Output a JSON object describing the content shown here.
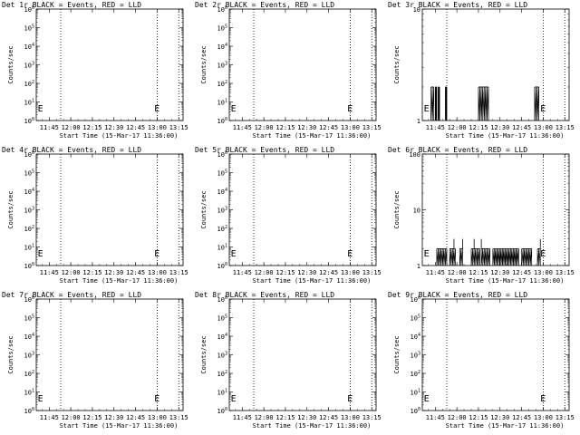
{
  "figure": {
    "background": "#ffffff",
    "foreground": "#000000"
  },
  "chart_data": [
    {
      "type": "line",
      "title": "Det 1r BLACK = Events, RED = LLD",
      "xlabel": "Start Time (15-Mar-17 11:36:00)",
      "ylabel": "Counts/sec",
      "yscale": "log",
      "ylim": [
        1,
        1000000.0
      ],
      "yticks": [
        "10^0",
        "10^1",
        "10^2",
        "10^3",
        "10^4",
        "10^5",
        "10^6"
      ],
      "xlim": [
        "11:36",
        "13:18"
      ],
      "xticks": [
        "11:45",
        "12:00",
        "12:15",
        "12:30",
        "12:45",
        "13:00",
        "13:15"
      ],
      "vlines": [
        "11:53",
        "13:00",
        "13:15"
      ],
      "markers": [
        {
          "x": "11:37",
          "label": "E"
        },
        {
          "x": "12:58",
          "label": "E"
        }
      ],
      "series": []
    },
    {
      "type": "line",
      "title": "Det 2r BLACK = Events, RED = LLD",
      "xlabel": "Start Time (15-Mar-17 11:36:00)",
      "ylabel": "Counts/sec",
      "yscale": "log",
      "ylim": [
        1,
        1000000.0
      ],
      "yticks": [
        "10^0",
        "10^1",
        "10^2",
        "10^3",
        "10^4",
        "10^5",
        "10^6"
      ],
      "xlim": [
        "11:36",
        "13:18"
      ],
      "xticks": [
        "11:45",
        "12:00",
        "12:15",
        "12:30",
        "12:45",
        "13:00",
        "13:15"
      ],
      "vlines": [
        "11:53",
        "13:00",
        "13:15"
      ],
      "markers": [
        {
          "x": "11:37",
          "label": "E"
        },
        {
          "x": "12:58",
          "label": "E"
        }
      ],
      "series": []
    },
    {
      "type": "line",
      "title": "Det 3r BLACK = Events, RED = LLD",
      "xlabel": "Start Time (15-Mar-17 11:36:00)",
      "ylabel": "Counts/sec",
      "yscale": "log",
      "ylim": [
        1,
        10
      ],
      "yticks": [
        "1",
        "10"
      ],
      "xlim": [
        "11:36",
        "13:18"
      ],
      "xticks": [
        "11:45",
        "12:00",
        "12:15",
        "12:30",
        "12:45",
        "13:00",
        "13:15"
      ],
      "vlines": [
        "11:53",
        "13:00",
        "13:15"
      ],
      "markers": [
        {
          "x": "11:37",
          "label": "E"
        },
        {
          "x": "12:58",
          "label": "E"
        }
      ],
      "series": [
        {
          "kind": "bursts",
          "high": 2,
          "low": 1,
          "intervals": [
            [
              "11:42",
              "11:44"
            ],
            [
              "11:45",
              "11:46"
            ],
            [
              "11:47",
              "11:48"
            ],
            [
              "11:52",
              "11:53"
            ],
            [
              "12:15",
              "12:22"
            ],
            [
              "12:54",
              "12:57"
            ]
          ]
        }
      ]
    },
    {
      "type": "line",
      "title": "Det 4r BLACK = Events, RED = LLD",
      "xlabel": "Start Time (15-Mar-17 11:36:00)",
      "ylabel": "Counts/sec",
      "yscale": "log",
      "ylim": [
        1,
        1000000.0
      ],
      "yticks": [
        "10^0",
        "10^1",
        "10^2",
        "10^3",
        "10^4",
        "10^5",
        "10^6"
      ],
      "xlim": [
        "11:36",
        "13:18"
      ],
      "xticks": [
        "11:45",
        "12:00",
        "12:15",
        "12:30",
        "12:45",
        "13:00",
        "13:15"
      ],
      "vlines": [
        "11:53",
        "13:00",
        "13:15"
      ],
      "markers": [
        {
          "x": "11:37",
          "label": "E"
        },
        {
          "x": "12:58",
          "label": "E"
        }
      ],
      "series": []
    },
    {
      "type": "line",
      "title": "Det 5r BLACK = Events, RED = LLD",
      "xlabel": "Start Time (15-Mar-17 11:36:00)",
      "ylabel": "Counts/sec",
      "yscale": "log",
      "ylim": [
        1,
        1000000.0
      ],
      "yticks": [
        "10^0",
        "10^1",
        "10^2",
        "10^3",
        "10^4",
        "10^5",
        "10^6"
      ],
      "xlim": [
        "11:36",
        "13:18"
      ],
      "xticks": [
        "11:45",
        "12:00",
        "12:15",
        "12:30",
        "12:45",
        "13:00",
        "13:15"
      ],
      "vlines": [
        "11:53",
        "13:00",
        "13:15"
      ],
      "markers": [
        {
          "x": "11:37",
          "label": "E"
        },
        {
          "x": "12:58",
          "label": "E"
        }
      ],
      "series": []
    },
    {
      "type": "line",
      "title": "Det 6r BLACK = Events, RED = LLD",
      "xlabel": "Start Time (15-Mar-17 11:36:00)",
      "ylabel": "Counts/sec",
      "yscale": "log",
      "ylim": [
        1,
        100
      ],
      "yticks": [
        "1",
        "10",
        "100"
      ],
      "xlim": [
        "11:36",
        "13:18"
      ],
      "xticks": [
        "11:45",
        "12:00",
        "12:15",
        "12:30",
        "12:45",
        "13:00",
        "13:15"
      ],
      "vlines": [
        "11:53",
        "13:00",
        "13:15"
      ],
      "markers": [
        {
          "x": "11:37",
          "label": "E"
        },
        {
          "x": "12:58",
          "label": "E"
        }
      ],
      "series": [
        {
          "kind": "bursts",
          "high": 2,
          "low": 1,
          "intervals": [
            [
              "11:46",
              "11:53"
            ],
            [
              "11:55",
              "11:59"
            ],
            [
              "12:02",
              "12:04"
            ],
            [
              "12:10",
              "12:16"
            ],
            [
              "12:17",
              "12:23"
            ],
            [
              "12:25",
              "12:43"
            ],
            [
              "12:45",
              "12:52"
            ],
            [
              "12:56",
              "12:58"
            ]
          ]
        },
        {
          "kind": "spikes",
          "points": [
            [
              "11:58",
              3
            ],
            [
              "12:04",
              3
            ],
            [
              "12:12",
              3
            ],
            [
              "12:17",
              3
            ],
            [
              "12:58",
              3
            ]
          ]
        }
      ]
    },
    {
      "type": "line",
      "title": "Det 7r BLACK = Events, RED = LLD",
      "xlabel": "Start Time (15-Mar-17 11:36:00)",
      "ylabel": "Counts/sec",
      "yscale": "log",
      "ylim": [
        1,
        1000000.0
      ],
      "yticks": [
        "10^0",
        "10^1",
        "10^2",
        "10^3",
        "10^4",
        "10^5",
        "10^6"
      ],
      "xlim": [
        "11:36",
        "13:18"
      ],
      "xticks": [
        "11:45",
        "12:00",
        "12:15",
        "12:30",
        "12:45",
        "13:00",
        "13:15"
      ],
      "vlines": [
        "11:53",
        "13:00",
        "13:15"
      ],
      "markers": [
        {
          "x": "11:37",
          "label": "E"
        },
        {
          "x": "12:58",
          "label": "E"
        }
      ],
      "series": []
    },
    {
      "type": "line",
      "title": "Det 8r BLACK = Events, RED = LLD",
      "xlabel": "Start Time (15-Mar-17 11:36:00)",
      "ylabel": "Counts/sec",
      "yscale": "log",
      "ylim": [
        1,
        1000000.0
      ],
      "yticks": [
        "10^0",
        "10^1",
        "10^2",
        "10^3",
        "10^4",
        "10^5",
        "10^6"
      ],
      "xlim": [
        "11:36",
        "13:18"
      ],
      "xticks": [
        "11:45",
        "12:00",
        "12:15",
        "12:30",
        "12:45",
        "13:00",
        "13:15"
      ],
      "vlines": [
        "11:53",
        "13:00",
        "13:15"
      ],
      "markers": [
        {
          "x": "11:37",
          "label": "E"
        },
        {
          "x": "12:58",
          "label": "E"
        }
      ],
      "series": []
    },
    {
      "type": "line",
      "title": "Det 9r BLACK = Events, RED = LLD",
      "xlabel": "Start Time (15-Mar-17 11:36:00)",
      "ylabel": "Counts/sec",
      "yscale": "log",
      "ylim": [
        1,
        1000000.0
      ],
      "yticks": [
        "10^0",
        "10^1",
        "10^2",
        "10^3",
        "10^4",
        "10^5",
        "10^6"
      ],
      "xlim": [
        "11:36",
        "13:18"
      ],
      "xticks": [
        "11:45",
        "12:00",
        "12:15",
        "12:30",
        "12:45",
        "13:00",
        "13:15"
      ],
      "vlines": [
        "11:53",
        "13:00",
        "13:15"
      ],
      "markers": [
        {
          "x": "11:37",
          "label": "E"
        },
        {
          "x": "12:58",
          "label": "E"
        }
      ],
      "series": []
    }
  ]
}
